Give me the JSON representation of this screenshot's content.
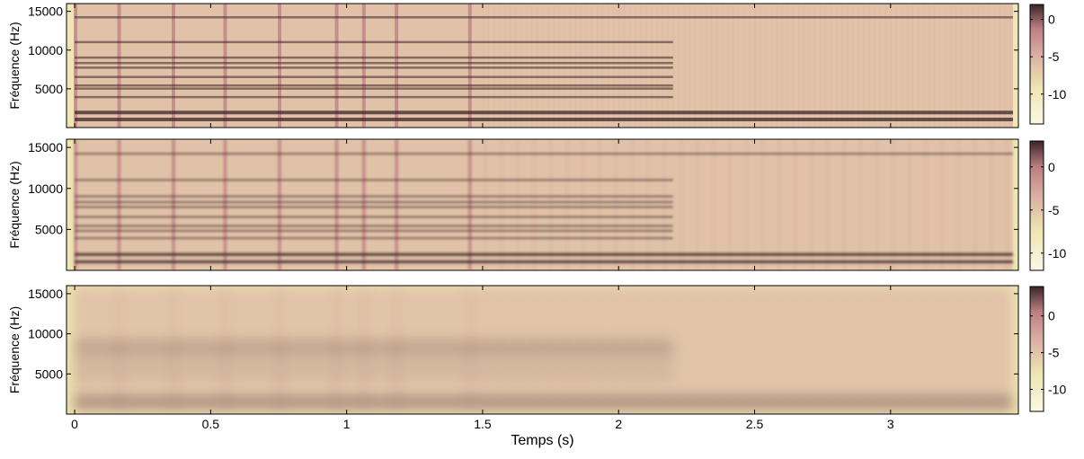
{
  "colormap": {
    "min_color": "#fbf8e6",
    "mid_light": "#eee6b3",
    "mid": "#d9aaa0",
    "mid_dark": "#bb7f82",
    "max_color": "#3b2426"
  },
  "chart_data": [
    {
      "type": "heatmap",
      "panel": "top",
      "xlabel": "",
      "ylabel": "Fréquence (Hz)",
      "xlim": [
        -0.03,
        3.47
      ],
      "ylim": [
        0,
        16000
      ],
      "yticks": [
        5000,
        10000,
        15000
      ],
      "xticks": [],
      "colorbar": {
        "range": [
          -14,
          2
        ],
        "ticks": [
          0,
          -5,
          -10
        ]
      },
      "onsets_s": [
        0,
        0.16,
        0.36,
        0.55,
        0.75,
        0.96,
        1.06,
        1.18,
        1.45
      ],
      "harmonic_lines_hz": [
        1100,
        2000,
        3900,
        5000,
        5400,
        6500,
        7700,
        8300,
        9000,
        11000,
        14200
      ],
      "smoothing": "sharp"
    },
    {
      "type": "heatmap",
      "panel": "middle",
      "xlabel": "",
      "ylabel": "Fréquence (Hz)",
      "xlim": [
        -0.03,
        3.47
      ],
      "ylim": [
        0,
        16000
      ],
      "yticks": [
        5000,
        10000,
        15000
      ],
      "xticks": [],
      "colorbar": {
        "range": [
          -12,
          3
        ],
        "ticks": [
          0,
          -5,
          -10
        ]
      },
      "onsets_s": [
        0,
        0.16,
        0.36,
        0.55,
        0.75,
        0.96,
        1.06,
        1.18,
        1.45
      ],
      "harmonic_lines_hz": [
        1100,
        2000,
        3900,
        4800,
        5400,
        6500,
        7700,
        8300,
        9000,
        11000,
        14200
      ],
      "smoothing": "medium"
    },
    {
      "type": "heatmap",
      "panel": "bottom",
      "xlabel": "Temps (s)",
      "ylabel": "Fréquence (Hz)",
      "xlim": [
        -0.03,
        3.47
      ],
      "ylim": [
        0,
        16000
      ],
      "yticks": [
        5000,
        10000,
        15000
      ],
      "xticks": [
        0,
        0.5,
        1,
        1.5,
        2,
        2.5,
        3
      ],
      "xticklabels": [
        "0",
        "0.5",
        "1",
        "1.5",
        "2",
        "2.5",
        "3"
      ],
      "colorbar": {
        "range": [
          -13,
          4
        ],
        "ticks": [
          0,
          -5,
          -10
        ]
      },
      "onsets_s": [
        0,
        0.16,
        0.36,
        0.55,
        0.75,
        0.96,
        1.06,
        1.18,
        1.45
      ],
      "harmonic_lines_hz": [
        1100,
        2000,
        4900,
        6500,
        7700,
        8300,
        9000
      ],
      "smoothing": "blurred"
    }
  ]
}
